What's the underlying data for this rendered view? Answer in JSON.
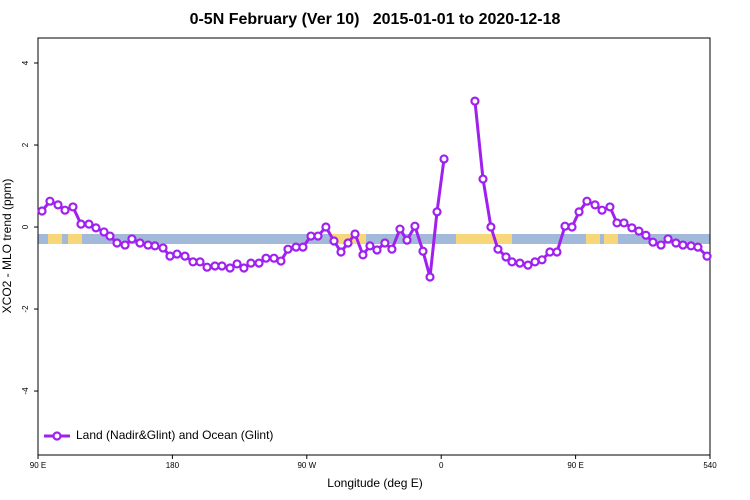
{
  "chart_data": {
    "type": "line",
    "title": "0-5N February (Ver 10)   2015-01-01 to 2020-12-18",
    "x_label": "Longitude (deg E)",
    "y_label": "XCO2 - MLO trend (ppm)",
    "xlim": [
      90,
      540
    ],
    "ylim": [
      -5.56,
      4.61
    ],
    "xticks": [
      {
        "value": 90,
        "label": "90 E"
      },
      180,
      {
        "value": 270,
        "label": "90 W"
      },
      {
        "value": 360,
        "label": "0"
      },
      {
        "value": 450,
        "label": "90 E"
      },
      540
    ],
    "yticks": [
      4,
      2,
      0,
      -2,
      -4
    ],
    "legend": "bottom-left",
    "series": [
      {
        "name": "Land (Nadir&Glint) and Ocean (Glint)",
        "color": "#a020f0",
        "x": [
          92.7,
          98,
          103.4,
          108.1,
          113.4,
          118.8,
          124.1,
          128.8,
          134.2,
          138.2,
          142.9,
          148.3,
          152.9,
          158.3,
          163.7,
          168.3,
          173.7,
          178.4,
          183.1,
          188.4,
          193.8,
          198.5,
          203.2,
          208.5,
          213.2,
          218.6,
          223.3,
          227.9,
          232.6,
          238,
          242.7,
          248,
          252.7,
          257.4,
          262.8,
          267.4,
          272.8,
          277.5,
          282.8,
          288.2,
          292.9,
          297.6,
          302.3,
          307.6,
          312.3,
          317,
          322.3,
          327,
          332.4,
          337.1,
          342.4,
          347.8,
          352.5,
          357.2,
          361.9,
          372,
          382.6,
          388,
          393.3,
          398,
          403.4,
          407.4,
          412.7,
          418.1,
          422.8,
          427.5,
          432.8,
          437.5,
          442.9,
          447.6,
          452.3,
          457.6,
          463,
          467.7,
          473,
          477.7,
          482.4,
          487.7,
          492.4,
          497.1,
          501.8,
          507.2,
          511.9,
          517.2,
          521.9,
          527.3,
          531.9,
          538
        ],
        "values": [
          0.39,
          0.63,
          0.54,
          0.41,
          0.49,
          0.07,
          0.07,
          -0.02,
          -0.12,
          -0.22,
          -0.39,
          -0.44,
          -0.29,
          -0.39,
          -0.44,
          -0.46,
          -0.51,
          -0.71,
          -0.66,
          -0.71,
          -0.85,
          -0.85,
          -0.98,
          -0.95,
          -0.95,
          -1.0,
          -0.9,
          -1.0,
          -0.88,
          -0.88,
          -0.76,
          -0.76,
          -0.83,
          -0.54,
          -0.49,
          -0.49,
          -0.22,
          -0.22,
          0,
          -0.34,
          -0.61,
          -0.39,
          -0.17,
          -0.68,
          -0.46,
          -0.56,
          -0.39,
          -0.54,
          -0.05,
          -0.32,
          0.02,
          -0.59,
          -1.22,
          0.37,
          1.66,
          null,
          3.07,
          1.17,
          0,
          -0.54,
          -0.73,
          -0.85,
          -0.88,
          -0.93,
          -0.85,
          -0.8,
          -0.61,
          -0.61,
          0.02,
          0,
          0.37,
          0.63,
          0.54,
          0.41,
          0.49,
          0.1,
          0.1,
          -0.02,
          -0.1,
          -0.2,
          -0.37,
          -0.44,
          -0.29,
          -0.39,
          -0.44,
          -0.46,
          -0.49,
          -0.71
        ]
      }
    ]
  }
}
